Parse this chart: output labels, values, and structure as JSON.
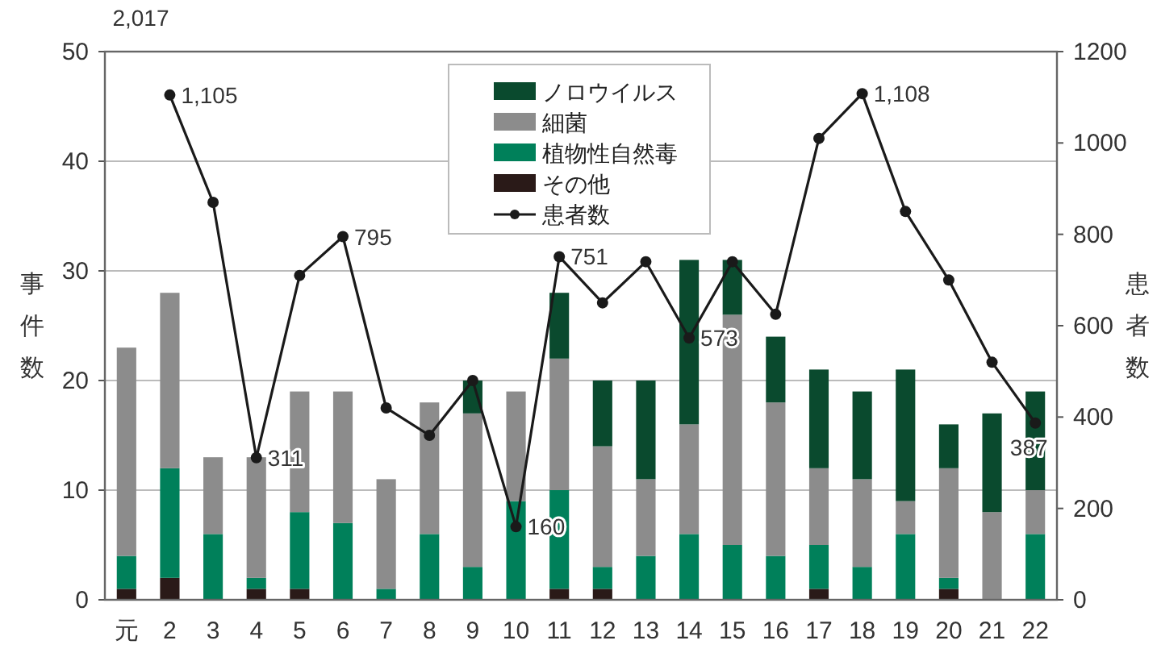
{
  "chart_data": {
    "type": "bar",
    "stacked": true,
    "categories": [
      "元",
      "2",
      "3",
      "4",
      "5",
      "6",
      "7",
      "8",
      "9",
      "10",
      "11",
      "12",
      "13",
      "14",
      "15",
      "16",
      "17",
      "18",
      "19",
      "20",
      "21",
      "22"
    ],
    "series": [
      {
        "name": "その他",
        "color": "#2a1a18",
        "values": [
          1,
          2,
          0,
          1,
          1,
          0,
          0,
          0,
          0,
          0,
          1,
          1,
          0,
          0,
          0,
          0,
          1,
          0,
          0,
          1,
          0,
          0
        ]
      },
      {
        "name": "植物性自然毒",
        "color": "#00805a",
        "values": [
          3,
          10,
          6,
          1,
          7,
          7,
          1,
          6,
          3,
          9,
          9,
          2,
          4,
          6,
          5,
          4,
          4,
          3,
          6,
          1,
          0,
          6
        ]
      },
      {
        "name": "細菌",
        "color": "#8c8c8c",
        "values": [
          19,
          16,
          7,
          11,
          11,
          12,
          10,
          12,
          14,
          10,
          12,
          11,
          7,
          10,
          21,
          14,
          7,
          8,
          3,
          10,
          8,
          4
        ]
      },
      {
        "name": "ノロウイルス",
        "color": "#0a4a2e",
        "values": [
          0,
          0,
          0,
          0,
          0,
          0,
          0,
          0,
          3,
          0,
          6,
          6,
          9,
          15,
          5,
          6,
          9,
          8,
          12,
          4,
          9,
          9
        ]
      },
      {
        "name": "患者数",
        "type": "line",
        "axis": "y2",
        "color": "#1a1a1a",
        "marker": "circle",
        "values": [
          null,
          1105,
          870,
          311,
          710,
          795,
          420,
          360,
          480,
          160,
          751,
          650,
          740,
          573,
          740,
          625,
          1010,
          1108,
          850,
          700,
          520,
          387
        ],
        "value_labels": [
          null,
          "1,105",
          null,
          "311",
          null,
          "795",
          null,
          null,
          null,
          "160",
          "751",
          null,
          null,
          "573",
          null,
          null,
          null,
          "1,108",
          null,
          null,
          null,
          "387"
        ]
      }
    ],
    "ylabel": "事件数",
    "y2label": "患者数",
    "ylim": [
      0,
      50
    ],
    "yticks": [
      0,
      10,
      20,
      30,
      40,
      50
    ],
    "y2lim": [
      0,
      1200
    ],
    "y2ticks": [
      0,
      200,
      400,
      600,
      800,
      1000,
      1200
    ],
    "grid": "y",
    "legend": "top",
    "annotations": [
      "2,017"
    ]
  }
}
